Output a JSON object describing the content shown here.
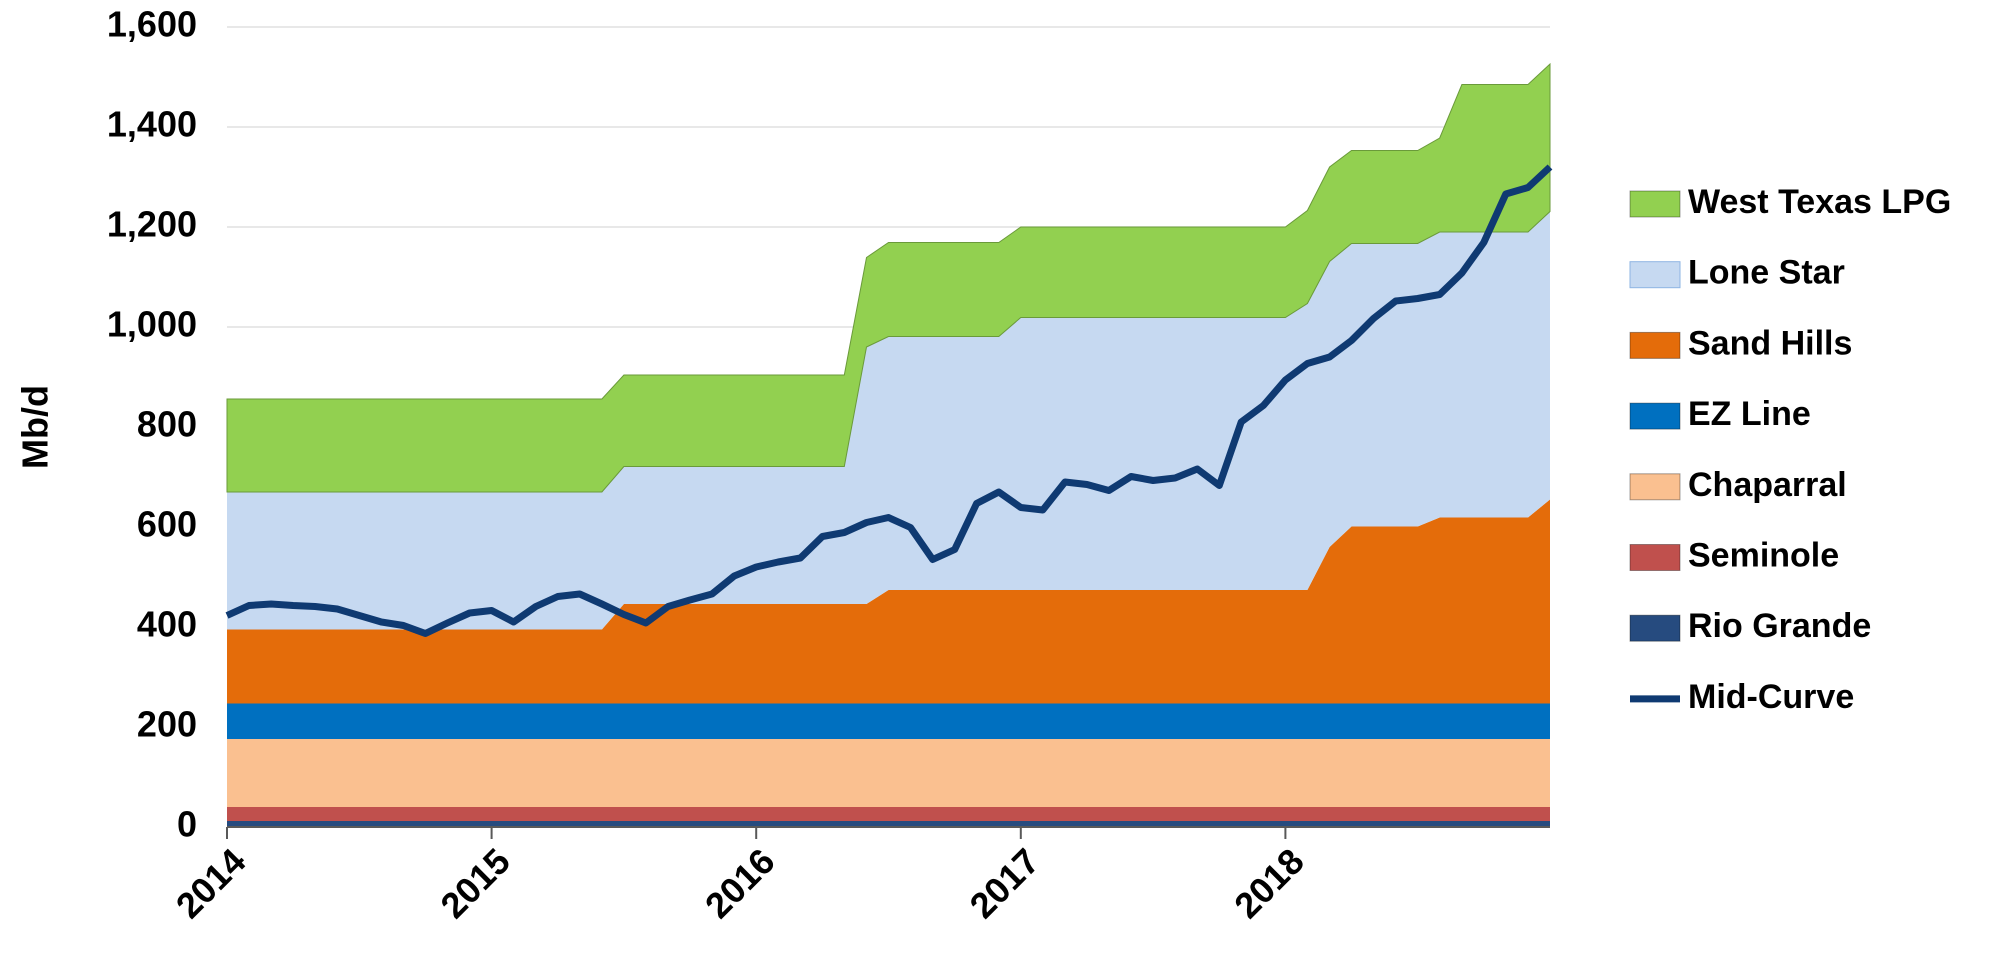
{
  "chart_data": {
    "type": "area",
    "ylabel": "Mb/d",
    "x": [
      2014,
      2014.083,
      2014.167,
      2014.25,
      2014.333,
      2014.417,
      2014.5,
      2014.583,
      2014.667,
      2014.75,
      2014.833,
      2014.917,
      2015,
      2015.083,
      2015.167,
      2015.25,
      2015.333,
      2015.417,
      2015.5,
      2015.583,
      2015.667,
      2015.75,
      2015.833,
      2015.917,
      2016,
      2016.083,
      2016.167,
      2016.25,
      2016.333,
      2016.417,
      2016.5,
      2016.583,
      2016.667,
      2016.75,
      2016.833,
      2016.917,
      2017,
      2017.083,
      2017.167,
      2017.25,
      2017.333,
      2017.417,
      2017.5,
      2017.583,
      2017.667,
      2017.75,
      2017.833,
      2017.917,
      2018,
      2018.083,
      2018.167,
      2018.25,
      2018.333,
      2018.417,
      2018.5,
      2018.583,
      2018.667,
      2018.75,
      2018.833,
      2018.917,
      2019
    ],
    "xlim": [
      2014,
      2019
    ],
    "xticks": [
      2014,
      2015,
      2016,
      2017,
      2018
    ],
    "ylim": [
      0,
      1600
    ],
    "yticks": [
      0,
      200,
      400,
      600,
      800,
      {
        "value": 1000,
        "label": "1,000"
      },
      {
        "value": 1200,
        "label": "1,200"
      },
      {
        "value": 1400,
        "label": "1,400"
      },
      {
        "value": 1600,
        "label": "1,600"
      }
    ],
    "grid": true,
    "series": [
      {
        "name": "Rio Grande",
        "type": "area",
        "color": "#264b7f",
        "values": [
          12,
          12,
          12,
          12,
          12,
          12,
          12,
          12,
          12,
          12,
          12,
          12,
          12,
          12,
          12,
          12,
          12,
          12,
          12,
          12,
          12,
          12,
          12,
          12,
          12,
          12,
          12,
          12,
          12,
          12,
          12,
          12,
          12,
          12,
          12,
          12,
          12,
          12,
          12,
          12,
          12,
          12,
          12,
          12,
          12,
          12,
          12,
          12,
          12,
          12,
          12,
          12,
          12,
          12,
          12,
          12,
          12,
          12,
          12,
          12,
          12
        ]
      },
      {
        "name": "Seminole",
        "type": "area",
        "color": "#c0504d",
        "values": [
          28,
          28,
          28,
          28,
          28,
          28,
          28,
          28,
          28,
          28,
          28,
          28,
          28,
          28,
          28,
          28,
          28,
          28,
          28,
          28,
          28,
          28,
          28,
          28,
          28,
          28,
          28,
          28,
          28,
          28,
          28,
          28,
          28,
          28,
          28,
          28,
          28,
          28,
          28,
          28,
          28,
          28,
          28,
          28,
          28,
          28,
          28,
          28,
          28,
          28,
          28,
          28,
          28,
          28,
          28,
          28,
          28,
          28,
          28,
          28,
          28
        ]
      },
      {
        "name": "Chaparral",
        "type": "area",
        "color": "#fac090",
        "values": [
          136,
          136,
          136,
          136,
          136,
          136,
          136,
          136,
          136,
          136,
          136,
          136,
          136,
          136,
          136,
          136,
          136,
          136,
          136,
          136,
          136,
          136,
          136,
          136,
          136,
          136,
          136,
          136,
          136,
          136,
          136,
          136,
          136,
          136,
          136,
          136,
          136,
          136,
          136,
          136,
          136,
          136,
          136,
          136,
          136,
          136,
          136,
          136,
          136,
          136,
          136,
          136,
          136,
          136,
          136,
          136,
          136,
          136,
          136,
          136,
          136
        ]
      },
      {
        "name": "EZ Line",
        "type": "area",
        "color": "#0070c0",
        "values": [
          71,
          71,
          71,
          71,
          71,
          71,
          71,
          71,
          71,
          71,
          71,
          71,
          71,
          71,
          71,
          71,
          71,
          71,
          71,
          71,
          71,
          71,
          71,
          71,
          71,
          71,
          71,
          71,
          71,
          71,
          71,
          71,
          71,
          71,
          71,
          71,
          71,
          71,
          71,
          71,
          71,
          71,
          71,
          71,
          71,
          71,
          71,
          71,
          71,
          71,
          71,
          71,
          71,
          71,
          71,
          71,
          71,
          71,
          71,
          71,
          71
        ]
      },
      {
        "name": "Sand Hills",
        "type": "area",
        "color": "#e46c0a",
        "values": [
          148,
          148,
          148,
          148,
          148,
          148,
          148,
          148,
          148,
          148,
          148,
          148,
          148,
          148,
          148,
          148,
          148,
          148,
          199,
          199,
          199,
          199,
          199,
          199,
          199,
          199,
          199,
          199,
          199,
          199,
          227,
          227,
          227,
          227,
          227,
          227,
          227,
          227,
          227,
          227,
          227,
          227,
          227,
          227,
          227,
          227,
          227,
          227,
          227,
          227,
          313,
          354,
          354,
          354,
          354,
          372,
          372,
          372,
          372,
          372,
          408
        ]
      },
      {
        "name": "Lone Star",
        "type": "area",
        "color": "#c6d9f1",
        "values": [
          275,
          275,
          275,
          275,
          275,
          275,
          275,
          275,
          275,
          275,
          275,
          275,
          275,
          275,
          275,
          275,
          275,
          275,
          275,
          275,
          275,
          275,
          275,
          275,
          275,
          275,
          275,
          275,
          275,
          514,
          507,
          507,
          507,
          507,
          507,
          507,
          545,
          545,
          545,
          545,
          545,
          545,
          545,
          545,
          545,
          545,
          545,
          545,
          545,
          573,
          571,
          566,
          566,
          566,
          566,
          571,
          571,
          571,
          571,
          571,
          576
        ]
      },
      {
        "name": "West Texas LPG",
        "type": "area",
        "color": "#92d050",
        "values": [
          186,
          186,
          186,
          186,
          186,
          186,
          186,
          186,
          186,
          186,
          186,
          186,
          186,
          186,
          186,
          186,
          186,
          186,
          183,
          183,
          183,
          183,
          183,
          183,
          183,
          183,
          183,
          183,
          183,
          179,
          188,
          188,
          188,
          188,
          188,
          188,
          181,
          181,
          181,
          181,
          181,
          181,
          181,
          181,
          181,
          181,
          181,
          181,
          181,
          186,
          189,
          186,
          186,
          186,
          186,
          188,
          295,
          295,
          295,
          295,
          295
        ]
      },
      {
        "name": "Mid-Curve",
        "type": "line",
        "color": "#0f3a72",
        "values": [
          423,
          443,
          446,
          443,
          441,
          436,
          423,
          410,
          403,
          387,
          408,
          428,
          433,
          410,
          441,
          461,
          466,
          446,
          425,
          408,
          441,
          454,
          466,
          502,
          520,
          530,
          538,
          581,
          589,
          609,
          619,
          599,
          535,
          555,
          647,
          670,
          639,
          634,
          690,
          685,
          673,
          701,
          693,
          698,
          716,
          683,
          810,
          843,
          894,
          927,
          940,
          973,
          1017,
          1052,
          1057,
          1065,
          1108,
          1169,
          1266,
          1279,
          1320
        ]
      }
    ]
  }
}
